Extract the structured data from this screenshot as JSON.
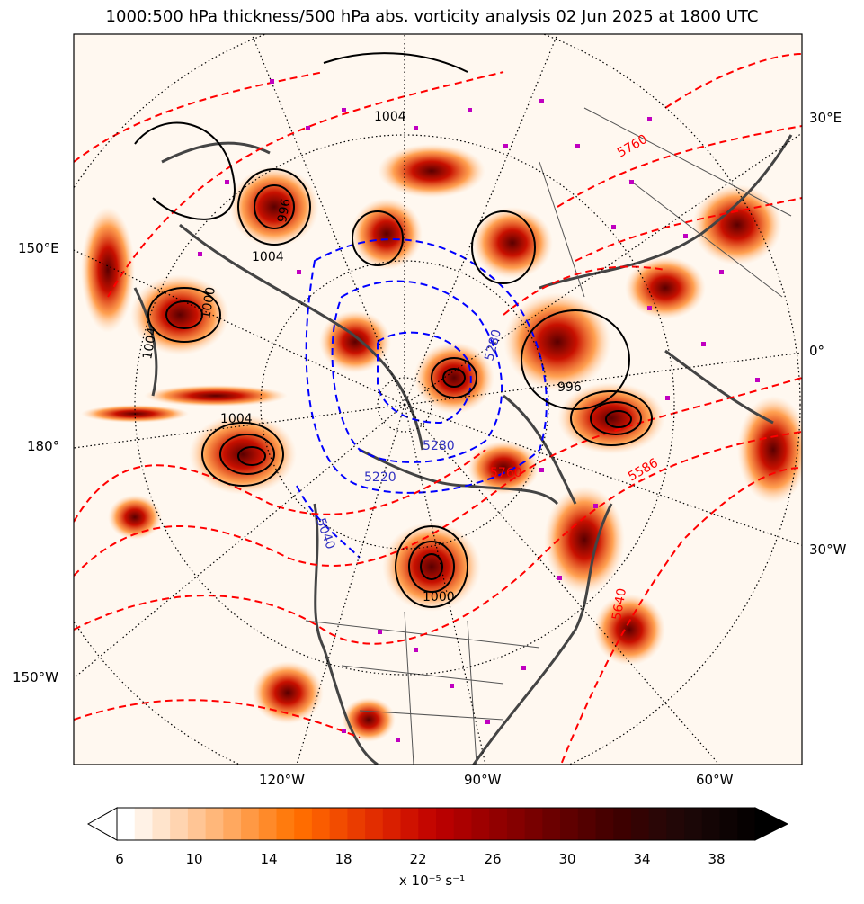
{
  "title": "1000:500 hPa thickness/500 hPa abs. vorticity analysis 02 Jun 2025 at 1800 UTC",
  "longitude_labels": {
    "east": [
      "30°E",
      "150°E",
      "0°",
      "180°"
    ],
    "west": [
      "30°W",
      "150°W",
      "120°W",
      "90°W",
      "60°W"
    ]
  },
  "contour_labels": {
    "pressure": [
      "1004",
      "1004",
      "996",
      "1004",
      "1000",
      "1004",
      "1004",
      "996",
      "1000",
      "996",
      "1000",
      "1004",
      "1008",
      "1000"
    ],
    "thickness_red": [
      "5760",
      "5640",
      "5586",
      "5760",
      "5640"
    ],
    "thickness_blue": [
      "5280",
      "5280",
      "5220",
      "5040"
    ]
  },
  "colorbar": {
    "ticks": [
      "6",
      "10",
      "14",
      "18",
      "22",
      "26",
      "30",
      "34",
      "38"
    ],
    "units": "x 10⁻⁵ s⁻¹",
    "colors": [
      "#ffffff",
      "#fff2e6",
      "#ffe4cc",
      "#ffd4b0",
      "#ffc595",
      "#ffb77a",
      "#ffa85f",
      "#ff9944",
      "#ff8a29",
      "#ff7b0e",
      "#ff6c00",
      "#fa5c00",
      "#f24c00",
      "#ea3c00",
      "#e22d00",
      "#d91f00",
      "#cf1200",
      "#c40600",
      "#b80000",
      "#ab0000",
      "#9e0000",
      "#910000",
      "#850000",
      "#780000",
      "#6b0000",
      "#5f0000",
      "#530000",
      "#470000",
      "#3d0000",
      "#330303",
      "#2a0606",
      "#220707",
      "#1b0707",
      "#140505",
      "#0d0303",
      "#060101"
    ]
  },
  "colors": {
    "thickness_warm": "#ff0000",
    "thickness_cold": "#0000ff",
    "pressure_contour": "#000000",
    "coastline": "#444444",
    "station_marker": "#c000c0"
  }
}
